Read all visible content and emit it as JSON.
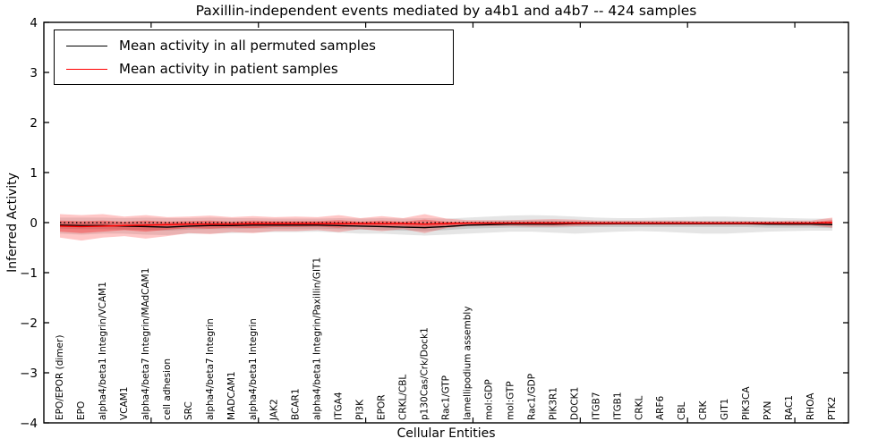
{
  "title": "Paxillin-independent events mediated by a4b1 and a4b7 -- 424 samples",
  "axes": {
    "ylabel": "Inferred Activity",
    "xlabel": "Cellular Entities",
    "ytick_labels": [
      "4",
      "3",
      "2",
      "1",
      "0",
      "−1",
      "−2",
      "−3",
      "−4"
    ]
  },
  "legend": {
    "entries": [
      {
        "label": "Mean activity in all permuted samples",
        "color": "#000000"
      },
      {
        "label": "Mean activity in patient samples",
        "color": "#ff0000"
      }
    ]
  },
  "chart_data": {
    "type": "line",
    "title": "Paxillin-independent events mediated by a4b1 and a4b7 -- 424 samples",
    "xlabel": "Cellular Entities",
    "ylabel": "Inferred Activity",
    "ylim": [
      -4,
      4
    ],
    "yticks": [
      4,
      3,
      2,
      1,
      0,
      -1,
      -2,
      -3,
      -4
    ],
    "grid": false,
    "legend_position": "upper left",
    "zero_reference_line": "dotted",
    "categories": [
      "EPO/EPOR (dimer)",
      "EPO",
      "alpha4/beta1 Integrin/VCAM1",
      "VCAM1",
      "alpha4/beta7 Integrin/MAdCAM1",
      "cell adhesion",
      "SRC",
      "alpha4/beta7 Integrin",
      "MADCAM1",
      "alpha4/beta1 Integrin",
      "JAK2",
      "BCAR1",
      "alpha4/beta1 Integrin/Paxillin/GIT1",
      "ITGA4",
      "PI3K",
      "EPOR",
      "CRKL/CBL",
      "p130Cas/Crk/Dock1",
      "Rac1/GTP",
      "lamellipodium assembly",
      "mol:GDP",
      "mol:GTP",
      "Rac1/GDP",
      "PIK3R1",
      "DOCK1",
      "ITGB7",
      "ITGB1",
      "CRKL",
      "ARF6",
      "CBL",
      "CRK",
      "GIT1",
      "PIK3CA",
      "PXN",
      "RAC1",
      "RHOA",
      "PTK2"
    ],
    "series": [
      {
        "name": "Mean activity in all permuted samples",
        "color": "#000000",
        "values": [
          -0.05,
          -0.06,
          -0.06,
          -0.07,
          -0.08,
          -0.09,
          -0.07,
          -0.06,
          -0.06,
          -0.05,
          -0.05,
          -0.05,
          -0.05,
          -0.06,
          -0.07,
          -0.08,
          -0.09,
          -0.1,
          -0.08,
          -0.05,
          -0.04,
          -0.03,
          -0.03,
          -0.03,
          -0.02,
          -0.02,
          -0.02,
          -0.02,
          -0.02,
          -0.02,
          -0.02,
          -0.02,
          -0.02,
          -0.03,
          -0.03,
          -0.03,
          -0.04
        ]
      },
      {
        "name": "Mean activity in patient samples",
        "color": "#ff0000",
        "values": [
          -0.07,
          -0.08,
          -0.07,
          -0.06,
          -0.05,
          -0.04,
          -0.03,
          -0.03,
          -0.03,
          -0.02,
          -0.02,
          -0.02,
          -0.02,
          -0.02,
          -0.02,
          -0.02,
          -0.02,
          -0.03,
          -0.02,
          -0.01,
          -0.01,
          -0.01,
          -0.01,
          -0.01,
          -0.01,
          -0.01,
          -0.01,
          -0.01,
          -0.01,
          -0.01,
          -0.01,
          -0.01,
          -0.01,
          -0.01,
          -0.01,
          -0.01,
          0.0
        ]
      }
    ],
    "bands": [
      {
        "name": "permuted-band-outer",
        "color": "#000000",
        "opacity": 0.1,
        "upper": [
          0.1,
          0.1,
          0.1,
          0.09,
          0.1,
          0.09,
          0.09,
          0.1,
          0.09,
          0.09,
          0.08,
          0.08,
          0.08,
          0.09,
          0.08,
          0.09,
          0.08,
          0.09,
          0.08,
          0.1,
          0.12,
          0.14,
          0.15,
          0.14,
          0.12,
          0.1,
          0.09,
          0.09,
          0.1,
          0.11,
          0.12,
          0.12,
          0.11,
          0.1,
          0.09,
          0.08,
          0.08
        ],
        "lower": [
          -0.22,
          -0.24,
          -0.22,
          -0.22,
          -0.24,
          -0.25,
          -0.22,
          -0.22,
          -0.21,
          -0.2,
          -0.19,
          -0.19,
          -0.18,
          -0.2,
          -0.22,
          -0.22,
          -0.24,
          -0.26,
          -0.24,
          -0.22,
          -0.2,
          -0.18,
          -0.18,
          -0.2,
          -0.22,
          -0.2,
          -0.18,
          -0.17,
          -0.18,
          -0.2,
          -0.22,
          -0.22,
          -0.2,
          -0.18,
          -0.17,
          -0.16,
          -0.16
        ]
      },
      {
        "name": "permuted-band-inner",
        "color": "#000000",
        "opacity": 0.12,
        "upper": [
          0.02,
          0.01,
          0.01,
          0.0,
          0.0,
          -0.01,
          0.0,
          0.01,
          0.01,
          0.01,
          0.02,
          0.02,
          0.02,
          0.01,
          0.0,
          -0.01,
          -0.01,
          -0.02,
          -0.01,
          0.02,
          0.03,
          0.04,
          0.04,
          0.04,
          0.03,
          0.03,
          0.03,
          0.03,
          0.03,
          0.03,
          0.03,
          0.03,
          0.03,
          0.02,
          0.02,
          0.02,
          0.02
        ],
        "lower": [
          -0.12,
          -0.13,
          -0.13,
          -0.14,
          -0.15,
          -0.16,
          -0.14,
          -0.13,
          -0.13,
          -0.12,
          -0.12,
          -0.12,
          -0.12,
          -0.13,
          -0.14,
          -0.15,
          -0.16,
          -0.17,
          -0.15,
          -0.12,
          -0.11,
          -0.1,
          -0.1,
          -0.1,
          -0.09,
          -0.09,
          -0.09,
          -0.09,
          -0.09,
          -0.09,
          -0.09,
          -0.09,
          -0.09,
          -0.1,
          -0.1,
          -0.1,
          -0.11
        ]
      },
      {
        "name": "patient-band-outer",
        "color": "#ff0000",
        "opacity": 0.22,
        "upper": [
          0.17,
          0.15,
          0.17,
          0.12,
          0.15,
          0.11,
          0.12,
          0.14,
          0.11,
          0.13,
          0.11,
          0.12,
          0.11,
          0.15,
          0.09,
          0.13,
          0.09,
          0.17,
          0.08,
          0.05,
          0.05,
          0.05,
          0.06,
          0.07,
          0.06,
          0.04,
          0.04,
          0.04,
          0.04,
          0.04,
          0.03,
          0.03,
          0.03,
          0.03,
          0.04,
          0.04,
          0.1
        ],
        "lower": [
          -0.3,
          -0.36,
          -0.3,
          -0.27,
          -0.32,
          -0.27,
          -0.21,
          -0.23,
          -0.19,
          -0.21,
          -0.17,
          -0.17,
          -0.15,
          -0.19,
          -0.13,
          -0.17,
          -0.13,
          -0.21,
          -0.11,
          -0.07,
          -0.07,
          -0.07,
          -0.08,
          -0.08,
          -0.07,
          -0.06,
          -0.05,
          -0.05,
          -0.05,
          -0.05,
          -0.05,
          -0.05,
          -0.05,
          -0.05,
          -0.06,
          -0.06,
          -0.1
        ]
      },
      {
        "name": "patient-band-inner",
        "color": "#ff0000",
        "opacity": 0.3,
        "upper": [
          0.04,
          0.03,
          0.04,
          0.02,
          0.04,
          0.02,
          0.03,
          0.04,
          0.02,
          0.04,
          0.03,
          0.03,
          0.03,
          0.05,
          0.02,
          0.04,
          0.02,
          0.06,
          0.02,
          0.01,
          0.01,
          0.01,
          0.02,
          0.02,
          0.02,
          0.01,
          0.01,
          0.01,
          0.01,
          0.01,
          0.01,
          0.01,
          0.01,
          0.01,
          0.01,
          0.01,
          0.05
        ],
        "lower": [
          -0.18,
          -0.21,
          -0.18,
          -0.15,
          -0.18,
          -0.14,
          -0.11,
          -0.12,
          -0.1,
          -0.11,
          -0.09,
          -0.09,
          -0.08,
          -0.1,
          -0.07,
          -0.09,
          -0.07,
          -0.12,
          -0.06,
          -0.04,
          -0.04,
          -0.04,
          -0.04,
          -0.05,
          -0.04,
          -0.03,
          -0.03,
          -0.03,
          -0.03,
          -0.03,
          -0.03,
          -0.03,
          -0.03,
          -0.03,
          -0.03,
          -0.03,
          -0.05
        ]
      }
    ]
  }
}
